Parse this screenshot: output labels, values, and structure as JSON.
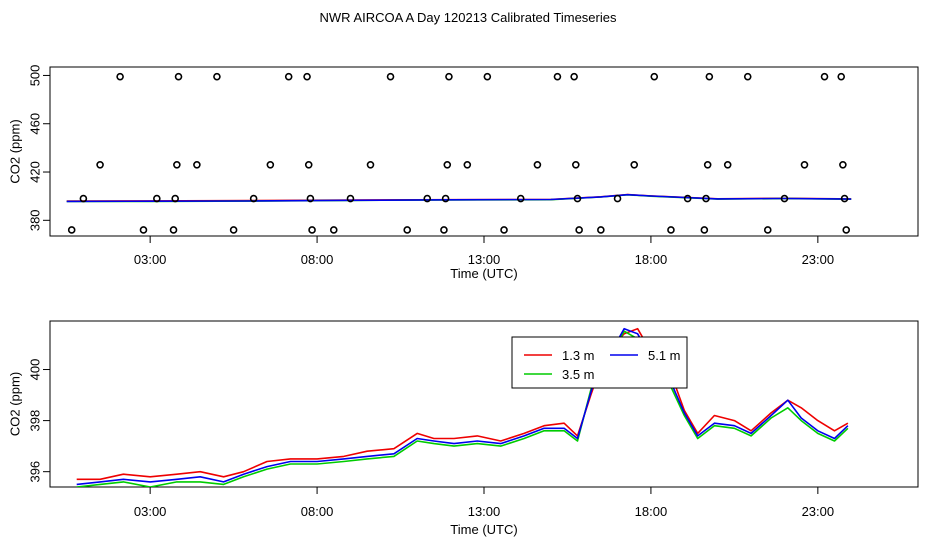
{
  "title": "NWR AIRCOA A  Day 120213  Calibrated Timeseries",
  "colors": {
    "red": "#ee0000",
    "green": "#00cc00",
    "blue": "#0000ee",
    "axis": "#000000"
  },
  "chart_data": [
    {
      "type": "scatter",
      "xlabel": "Time (UTC)",
      "ylabel": "CO2 (ppm)",
      "xlim": [
        0,
        26
      ],
      "ylim": [
        367,
        507
      ],
      "xticks": [
        3,
        8,
        13,
        18,
        23
      ],
      "xtick_labels": [
        "03:00",
        "08:00",
        "13:00",
        "18:00",
        "23:00"
      ],
      "yticks": [
        380,
        420,
        460,
        500
      ],
      "ytick_labels": [
        "380",
        "420",
        "460",
        "500"
      ],
      "points": [
        {
          "x": 0.65,
          "y": 372
        },
        {
          "x": 1.0,
          "y": 398
        },
        {
          "x": 1.5,
          "y": 426
        },
        {
          "x": 2.1,
          "y": 499
        },
        {
          "x": 2.8,
          "y": 372
        },
        {
          "x": 3.2,
          "y": 398
        },
        {
          "x": 3.7,
          "y": 372
        },
        {
          "x": 3.75,
          "y": 398
        },
        {
          "x": 3.8,
          "y": 426
        },
        {
          "x": 3.85,
          "y": 499
        },
        {
          "x": 4.4,
          "y": 426
        },
        {
          "x": 5.0,
          "y": 499
        },
        {
          "x": 5.5,
          "y": 372
        },
        {
          "x": 6.1,
          "y": 398
        },
        {
          "x": 6.6,
          "y": 426
        },
        {
          "x": 7.15,
          "y": 499
        },
        {
          "x": 7.7,
          "y": 499
        },
        {
          "x": 7.75,
          "y": 426
        },
        {
          "x": 7.8,
          "y": 398
        },
        {
          "x": 7.85,
          "y": 372
        },
        {
          "x": 8.5,
          "y": 372
        },
        {
          "x": 9.0,
          "y": 398
        },
        {
          "x": 9.6,
          "y": 426
        },
        {
          "x": 10.2,
          "y": 499
        },
        {
          "x": 10.7,
          "y": 372
        },
        {
          "x": 11.3,
          "y": 398
        },
        {
          "x": 11.8,
          "y": 372
        },
        {
          "x": 11.85,
          "y": 398
        },
        {
          "x": 11.9,
          "y": 426
        },
        {
          "x": 11.95,
          "y": 499
        },
        {
          "x": 12.5,
          "y": 426
        },
        {
          "x": 13.1,
          "y": 499
        },
        {
          "x": 13.6,
          "y": 372
        },
        {
          "x": 14.1,
          "y": 398
        },
        {
          "x": 14.6,
          "y": 426
        },
        {
          "x": 15.2,
          "y": 499
        },
        {
          "x": 15.7,
          "y": 499
        },
        {
          "x": 15.75,
          "y": 426
        },
        {
          "x": 15.8,
          "y": 398
        },
        {
          "x": 15.85,
          "y": 372
        },
        {
          "x": 16.5,
          "y": 372
        },
        {
          "x": 17.0,
          "y": 398
        },
        {
          "x": 17.5,
          "y": 426
        },
        {
          "x": 18.1,
          "y": 499
        },
        {
          "x": 18.6,
          "y": 372
        },
        {
          "x": 19.1,
          "y": 398
        },
        {
          "x": 19.6,
          "y": 372
        },
        {
          "x": 19.65,
          "y": 398
        },
        {
          "x": 19.7,
          "y": 426
        },
        {
          "x": 19.75,
          "y": 499
        },
        {
          "x": 20.3,
          "y": 426
        },
        {
          "x": 20.9,
          "y": 499
        },
        {
          "x": 21.5,
          "y": 372
        },
        {
          "x": 22.0,
          "y": 398
        },
        {
          "x": 22.6,
          "y": 426
        },
        {
          "x": 23.2,
          "y": 499
        },
        {
          "x": 23.7,
          "y": 499
        },
        {
          "x": 23.75,
          "y": 426
        },
        {
          "x": 23.8,
          "y": 398
        },
        {
          "x": 23.85,
          "y": 372
        }
      ],
      "series": [
        {
          "name": "1.3 m",
          "color": "#ee0000",
          "x": [
            0.5,
            3,
            6,
            9,
            12,
            15,
            16.5,
            17.3,
            18,
            20,
            22,
            24
          ],
          "values": [
            396,
            396.1,
            396.3,
            396.8,
            397.1,
            397.3,
            399.5,
            401.3,
            400.2,
            397.8,
            398.2,
            397.7
          ]
        },
        {
          "name": "3.5 m",
          "color": "#00cc00",
          "x": [
            0.5,
            3,
            6,
            9,
            12,
            15,
            16.5,
            17.3,
            18,
            20,
            22,
            24
          ],
          "values": [
            395.6,
            395.7,
            395.9,
            396.5,
            396.9,
            397.1,
            399.3,
            401.1,
            400.0,
            397.6,
            398.0,
            397.5
          ]
        },
        {
          "name": "5.1 m",
          "color": "#0000ee",
          "x": [
            0.5,
            3,
            6,
            9,
            12,
            15,
            16.5,
            17.3,
            18,
            20,
            22,
            24
          ],
          "values": [
            395.7,
            395.8,
            396.0,
            396.6,
            397.0,
            397.2,
            399.4,
            401.2,
            400.1,
            397.7,
            398.1,
            397.6
          ]
        }
      ]
    },
    {
      "type": "line",
      "xlabel": "Time (UTC)",
      "ylabel": "CO2 (ppm)",
      "xlim": [
        0,
        26
      ],
      "ylim": [
        395.4,
        401.9
      ],
      "xticks": [
        3,
        8,
        13,
        18,
        23
      ],
      "xtick_labels": [
        "03:00",
        "08:00",
        "13:00",
        "18:00",
        "23:00"
      ],
      "yticks": [
        396,
        398,
        400
      ],
      "ytick_labels": [
        "396",
        "398",
        "400"
      ],
      "legend": [
        "1.3 m",
        "3.5 m",
        "5.1 m"
      ],
      "legend_position": "top-right",
      "series": [
        {
          "name": "1.3 m",
          "color": "#ee0000",
          "x": [
            0.8,
            1.5,
            2.2,
            3.0,
            3.8,
            4.5,
            5.2,
            5.8,
            6.5,
            7.2,
            8.0,
            8.8,
            9.5,
            10.3,
            11.0,
            11.5,
            12.1,
            12.8,
            13.5,
            14.2,
            14.8,
            15.4,
            15.8,
            16.2,
            16.6,
            16.9,
            17.2,
            17.6,
            18.0,
            18.5,
            19.0,
            19.4,
            19.9,
            20.5,
            21.0,
            21.6,
            22.1,
            22.5,
            23.0,
            23.5,
            23.9
          ],
          "values": [
            395.7,
            395.7,
            395.9,
            395.8,
            395.9,
            396.0,
            395.8,
            396.0,
            396.4,
            396.5,
            396.5,
            396.6,
            396.8,
            396.9,
            397.5,
            397.3,
            397.3,
            397.4,
            397.2,
            397.5,
            397.8,
            397.9,
            397.4,
            399.0,
            400.5,
            401.0,
            401.4,
            401.6,
            400.7,
            400.2,
            398.4,
            397.5,
            398.2,
            398.0,
            397.6,
            398.3,
            398.8,
            398.5,
            398.0,
            397.6,
            397.9
          ]
        },
        {
          "name": "3.5 m",
          "color": "#00cc00",
          "x": [
            0.8,
            1.5,
            2.2,
            3.0,
            3.8,
            4.5,
            5.2,
            5.8,
            6.5,
            7.2,
            8.0,
            8.8,
            9.5,
            10.3,
            11.0,
            11.5,
            12.1,
            12.8,
            13.5,
            14.2,
            14.8,
            15.4,
            15.8,
            16.2,
            16.6,
            16.9,
            17.2,
            17.6,
            18.0,
            18.5,
            19.0,
            19.4,
            19.9,
            20.5,
            21.0,
            21.6,
            22.1,
            22.5,
            23.0,
            23.5,
            23.9
          ],
          "values": [
            395.4,
            395.5,
            395.6,
            395.4,
            395.6,
            395.6,
            395.5,
            395.8,
            396.1,
            396.3,
            396.3,
            396.4,
            396.5,
            396.6,
            397.2,
            397.1,
            397.0,
            397.1,
            397.0,
            397.3,
            397.6,
            397.6,
            397.2,
            399.2,
            400.9,
            400.8,
            401.5,
            401.2,
            400.4,
            399.6,
            398.2,
            397.3,
            397.8,
            397.7,
            397.4,
            398.1,
            398.5,
            398.0,
            397.5,
            397.2,
            397.7
          ]
        },
        {
          "name": "5.1 m",
          "color": "#0000ee",
          "x": [
            0.8,
            1.5,
            2.2,
            3.0,
            3.8,
            4.5,
            5.2,
            5.8,
            6.5,
            7.2,
            8.0,
            8.8,
            9.5,
            10.3,
            11.0,
            11.5,
            12.1,
            12.8,
            13.5,
            14.2,
            14.8,
            15.4,
            15.8,
            16.2,
            16.6,
            16.9,
            17.2,
            17.6,
            18.0,
            18.5,
            19.0,
            19.4,
            19.9,
            20.5,
            21.0,
            21.6,
            22.1,
            22.5,
            23.0,
            23.5,
            23.9
          ],
          "values": [
            395.5,
            395.6,
            395.7,
            395.6,
            395.7,
            395.8,
            395.6,
            395.9,
            396.2,
            396.4,
            396.4,
            396.5,
            396.6,
            396.7,
            397.3,
            397.2,
            397.1,
            397.2,
            397.1,
            397.4,
            397.7,
            397.7,
            397.3,
            399.1,
            400.8,
            400.9,
            401.6,
            401.4,
            400.5,
            399.8,
            398.3,
            397.4,
            397.9,
            397.8,
            397.5,
            398.2,
            398.8,
            398.1,
            397.6,
            397.3,
            397.8
          ]
        }
      ]
    }
  ]
}
